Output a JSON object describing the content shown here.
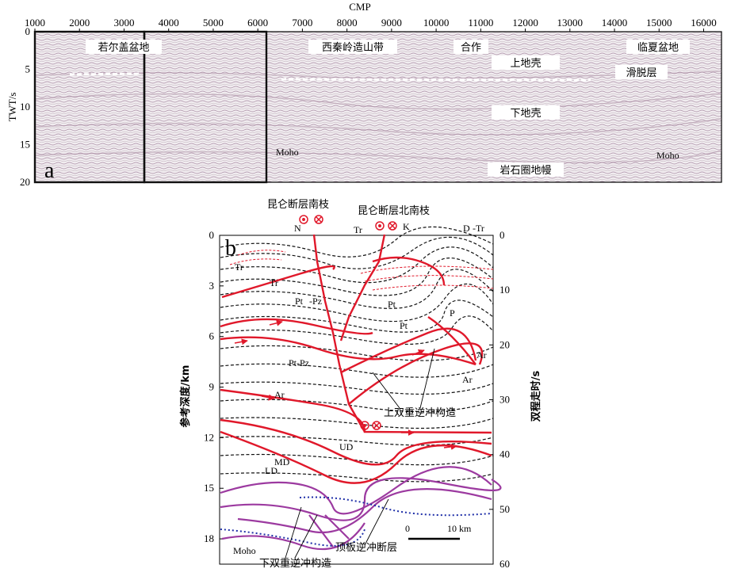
{
  "panel_a": {
    "panel_label": "a",
    "x_axis_title": "CMP",
    "x_ticks": [
      "1000",
      "2000",
      "3000",
      "4000",
      "5000",
      "6000",
      "7000",
      "8000",
      "9000",
      "10000",
      "11000",
      "12000",
      "13000",
      "14000",
      "15000",
      "16000"
    ],
    "y_axis_title": "TWT/s",
    "y_ticks": [
      "0",
      "5",
      "10",
      "15",
      "20"
    ],
    "labels": {
      "basin_west": "若尔盖盆地",
      "orogen": "西秦岭造山带",
      "hezuo": "合作",
      "basin_east": "临夏盆地",
      "upper_crust": "上地壳",
      "detachment": "滑脱层",
      "lower_crust": "下地壳",
      "moho_left": "Moho",
      "moho_right": "Moho",
      "lithosphere_root": "岩石圈地幔"
    }
  },
  "panel_b": {
    "panel_label": "b",
    "left_axis_title": "参考深度/km",
    "left_ticks": [
      "0",
      "3",
      "6",
      "9",
      "12",
      "15",
      "18"
    ],
    "right_axis_title": "双程走时/s",
    "right_ticks": [
      "0",
      "10",
      "20",
      "30",
      "40",
      "50",
      "60"
    ],
    "fault_south_label": "昆仑断层南枝",
    "fault_north_label": "昆仑断层北南枝",
    "top_labels": {
      "n": "N",
      "tr": "Tr",
      "k": "K",
      "d": "D",
      "tr2": "-Tr"
    },
    "unit_labels": {
      "tr_a": "Tr",
      "tr_b": "Tr",
      "ptpz_a": "Pt",
      "ptpz_a2": "-Pz",
      "pt_b": "Pt",
      "pt_c": "Pt",
      "ptpz_b": "Pt-Pz",
      "ar_a": "Ar",
      "ar_b": "Ar",
      "ar_c": "Ar",
      "pz": "P"
    },
    "structure_labels": {
      "upper_duplex": "上双重逆冲构造",
      "ud": "UD",
      "md": "MD",
      "ld": "LD",
      "moho": "Moho",
      "lower_duplex": "下双重逆冲构造",
      "roof_thrust": "顶板逆冲断层"
    },
    "scale": {
      "zero": "0",
      "length": "10 km"
    }
  }
}
